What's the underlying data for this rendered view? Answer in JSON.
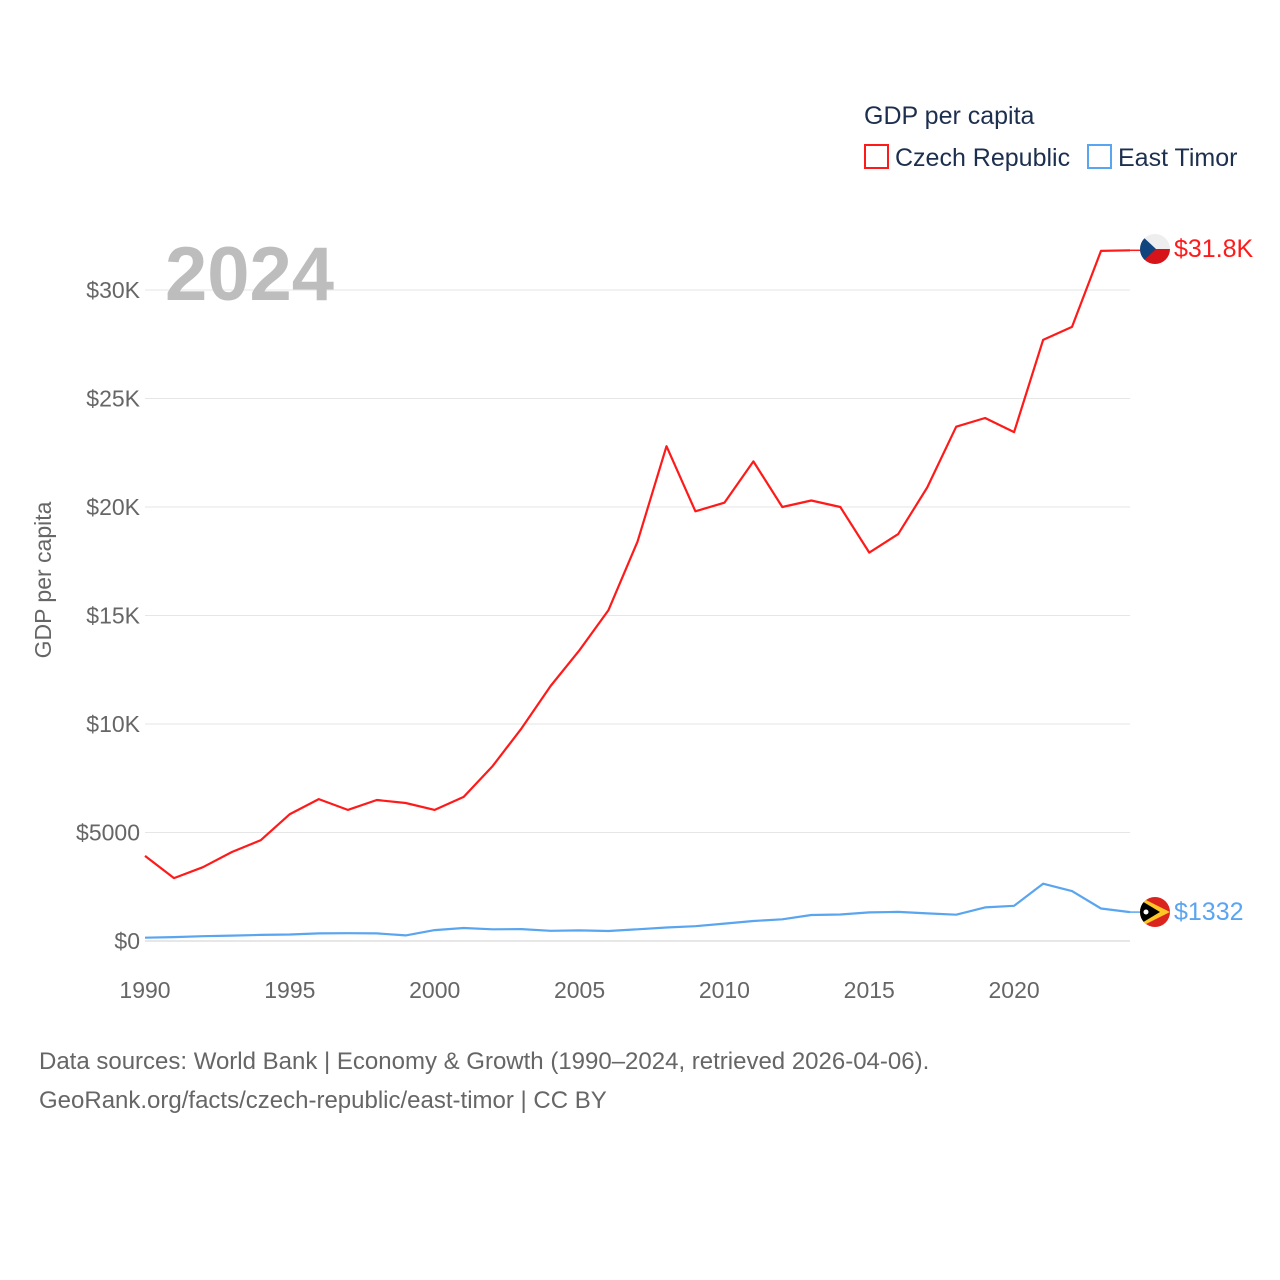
{
  "chart_data": {
    "type": "line",
    "title": "GDP per capita",
    "year_watermark": "2024",
    "xlabel": "",
    "ylabel": "GDP per capita",
    "xlim": [
      1990,
      2024
    ],
    "ylim": [
      0,
      32000
    ],
    "grid": true,
    "legend_placement": "top-right",
    "x_ticks": [
      1990,
      1995,
      2000,
      2005,
      2010,
      2015,
      2020
    ],
    "x_tick_labels": [
      "1990",
      "1995",
      "2000",
      "2005",
      "2010",
      "2015",
      "2020"
    ],
    "y_ticks": [
      0,
      5000,
      10000,
      15000,
      20000,
      25000,
      30000
    ],
    "y_tick_labels": [
      "$0",
      "$5000",
      "$10K",
      "$15K",
      "$20K",
      "$25K",
      "$30K"
    ],
    "x": [
      1990,
      1991,
      1992,
      1993,
      1994,
      1995,
      1996,
      1997,
      1998,
      1999,
      2000,
      2001,
      2002,
      2003,
      2004,
      2005,
      2006,
      2007,
      2008,
      2009,
      2010,
      2011,
      2012,
      2013,
      2014,
      2015,
      2016,
      2017,
      2018,
      2019,
      2020,
      2021,
      2022,
      2023,
      2024
    ],
    "series": [
      {
        "name": "Czech Republic",
        "color": "#ff1a1a",
        "flag": "czech-flag",
        "end_label": "$31.8K",
        "values": [
          3920,
          2900,
          3400,
          4100,
          4650,
          5850,
          6540,
          6040,
          6500,
          6360,
          6040,
          6640,
          8060,
          9800,
          11750,
          13400,
          15250,
          18400,
          22800,
          19800,
          20200,
          22100,
          20000,
          20300,
          20000,
          17900,
          18750,
          20900,
          23700,
          24100,
          23450,
          27700,
          28300,
          31800,
          31830
        ]
      },
      {
        "name": "East Timor",
        "color": "#5aa5ef",
        "flag": "east-timor-flag",
        "end_label": "$1332",
        "values": [
          150,
          180,
          220,
          250,
          280,
          300,
          350,
          360,
          350,
          260,
          500,
          600,
          540,
          550,
          470,
          490,
          460,
          540,
          620,
          680,
          800,
          920,
          1000,
          1200,
          1220,
          1320,
          1340,
          1270,
          1210,
          1550,
          1620,
          2640,
          2300,
          1500,
          1332
        ]
      }
    ],
    "source_line1": "Data sources: World Bank | Economy & Growth (1990–2024, retrieved 2026-04-06).",
    "source_line2": "GeoRank.org/facts/czech-republic/east-timor | CC BY"
  }
}
